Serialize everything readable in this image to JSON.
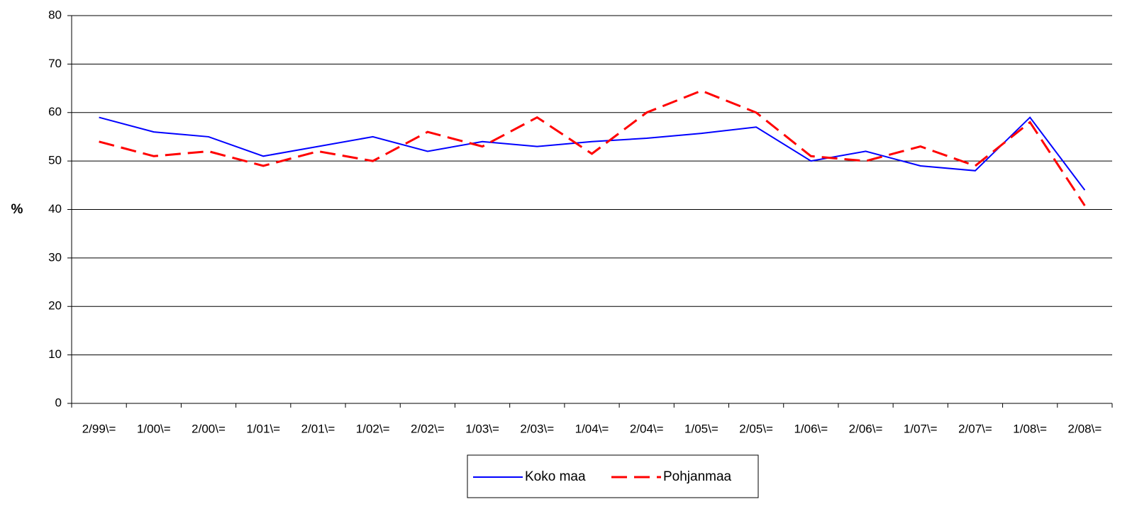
{
  "chart_data": {
    "type": "line",
    "y_label": "%",
    "categories": [
      "2/99\\=",
      "1/00\\=",
      "2/00\\=",
      "1/01\\=",
      "2/01\\=",
      "1/02\\=",
      "2/02\\=",
      "1/03\\=",
      "2/03\\=",
      "1/04\\=",
      "2/04\\=",
      "1/05\\=",
      "2/05\\=",
      "1/06\\=",
      "2/06\\=",
      "1/07\\=",
      "2/07\\=",
      "1/08\\=",
      "2/08\\="
    ],
    "series": [
      {
        "name": "Koko maa",
        "color": "#0000ff",
        "dashed": false,
        "values": [
          59,
          56,
          55,
          51,
          53,
          55,
          52,
          54,
          53,
          54,
          54.7,
          55.7,
          57,
          50,
          52,
          49,
          48,
          59,
          44
        ]
      },
      {
        "name": "Pohjanmaa",
        "color": "#ff0000",
        "dashed": true,
        "values": [
          54,
          51,
          52,
          49,
          52,
          50,
          56,
          53,
          59,
          51.5,
          60,
          64.5,
          60,
          51,
          50,
          53,
          49,
          58,
          40.8
        ]
      }
    ],
    "ylim": [
      0,
      80
    ],
    "yticks": [
      0,
      10,
      20,
      30,
      40,
      50,
      60,
      70,
      80
    ],
    "grid": true,
    "legend": "bottom"
  }
}
